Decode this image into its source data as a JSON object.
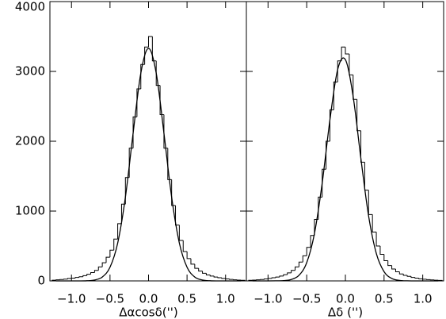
{
  "chart_data": [
    {
      "type": "histogram",
      "xlabel": "Δαcosδ('')",
      "bins": [
        -1.25,
        -1.2,
        -1.15,
        -1.1,
        -1.05,
        -1.0,
        -0.95,
        -0.9,
        -0.85,
        -0.8,
        -0.75,
        -0.7,
        -0.65,
        -0.6,
        -0.55,
        -0.5,
        -0.45,
        -0.4,
        -0.35,
        -0.3,
        -0.25,
        -0.2,
        -0.15,
        -0.1,
        -0.05,
        0,
        0.05,
        0.1,
        0.15,
        0.2,
        0.25,
        0.3,
        0.35,
        0.4,
        0.45,
        0.5,
        0.55,
        0.6,
        0.65,
        0.7,
        0.75,
        0.8,
        0.85,
        0.9,
        0.95,
        1.0,
        1.05,
        1.1,
        1.15,
        1.2,
        1.25
      ],
      "values": [
        10,
        15,
        20,
        25,
        35,
        40,
        50,
        60,
        75,
        95,
        120,
        150,
        200,
        260,
        340,
        440,
        600,
        820,
        1100,
        1480,
        1900,
        2350,
        2750,
        3100,
        3350,
        3500,
        3150,
        2800,
        2380,
        1900,
        1450,
        1080,
        800,
        580,
        420,
        320,
        240,
        180,
        140,
        110,
        85,
        70,
        55,
        45,
        35,
        28,
        22,
        16,
        12,
        8
      ],
      "color": "#000000",
      "fit": {
        "color": "#000000",
        "x": [
          -1.2,
          -1.1,
          -1.0,
          -0.9,
          -0.8,
          -0.7,
          -0.6,
          -0.5,
          -0.4,
          -0.3,
          -0.2,
          -0.1,
          0,
          0.1,
          0.2,
          0.3,
          0.4,
          0.5,
          0.6,
          0.7,
          0.8,
          0.9,
          1.0,
          1.1,
          1.2
        ],
        "values": [
          0,
          0,
          0,
          0,
          2,
          13,
          56,
          196,
          543,
          1200,
          2116,
          2975,
          3330,
          2975,
          2116,
          1200,
          543,
          196,
          56,
          13,
          2,
          0,
          0,
          0,
          0
        ]
      },
      "xlim": [
        -1.28,
        1.27
      ],
      "ylim": [
        0,
        4000
      ],
      "xticks": [
        {
          "value": -1,
          "label": "−1.0"
        },
        {
          "value": -0.5,
          "label": "−0.5"
        },
        {
          "value": 0,
          "label": "0.0"
        },
        0.5,
        {
          "value": 1,
          "label": "1.0"
        }
      ],
      "yticks": [
        0,
        1000,
        2000,
        3000,
        4000
      ]
    },
    {
      "type": "histogram",
      "xlabel": "Δδ ('')",
      "bins": [
        -1.25,
        -1.2,
        -1.15,
        -1.1,
        -1.05,
        -1.0,
        -0.95,
        -0.9,
        -0.85,
        -0.8,
        -0.75,
        -0.7,
        -0.65,
        -0.6,
        -0.55,
        -0.5,
        -0.45,
        -0.4,
        -0.35,
        -0.3,
        -0.25,
        -0.2,
        -0.15,
        -0.1,
        -0.05,
        0,
        0.05,
        0.1,
        0.15,
        0.2,
        0.25,
        0.3,
        0.35,
        0.4,
        0.45,
        0.5,
        0.55,
        0.6,
        0.65,
        0.7,
        0.75,
        0.8,
        0.85,
        0.9,
        0.95,
        1.0,
        1.05,
        1.1,
        1.15,
        1.2,
        1.25
      ],
      "values": [
        8,
        12,
        15,
        20,
        28,
        35,
        45,
        55,
        70,
        90,
        115,
        150,
        200,
        270,
        360,
        480,
        650,
        880,
        1200,
        1600,
        2000,
        2450,
        2850,
        3150,
        3350,
        3250,
        2950,
        2600,
        2150,
        1700,
        1300,
        950,
        700,
        500,
        380,
        290,
        220,
        170,
        130,
        100,
        80,
        65,
        50,
        40,
        30,
        24,
        18,
        14,
        10,
        7
      ],
      "color": "#000000",
      "fit": {
        "color": "#000000",
        "x": [
          -1.2,
          -1.1,
          -1.0,
          -0.9,
          -0.8,
          -0.7,
          -0.6,
          -0.5,
          -0.4,
          -0.3,
          -0.2,
          -0.1,
          0,
          0.1,
          0.2,
          0.3,
          0.4,
          0.5,
          0.6,
          0.7,
          0.8,
          0.9,
          1.0,
          1.1,
          1.2
        ],
        "values": [
          0,
          0,
          0,
          1,
          4,
          20,
          80,
          261,
          678,
          1399,
          2305,
          3027,
          3168,
          2643,
          1757,
          931,
          393,
          132,
          35,
          7,
          1,
          0,
          0,
          0,
          0
        ]
      },
      "xlim": [
        -1.28,
        1.27
      ],
      "ylim": [
        0,
        4000
      ],
      "xticks": [
        {
          "value": -1,
          "label": "−1.0"
        },
        {
          "value": -0.5,
          "label": "−0.5"
        },
        {
          "value": 0,
          "label": "0.0"
        },
        0.5,
        {
          "value": 1,
          "label": "1.0"
        }
      ],
      "yticks": [
        0,
        1000,
        2000,
        3000,
        4000
      ]
    }
  ]
}
